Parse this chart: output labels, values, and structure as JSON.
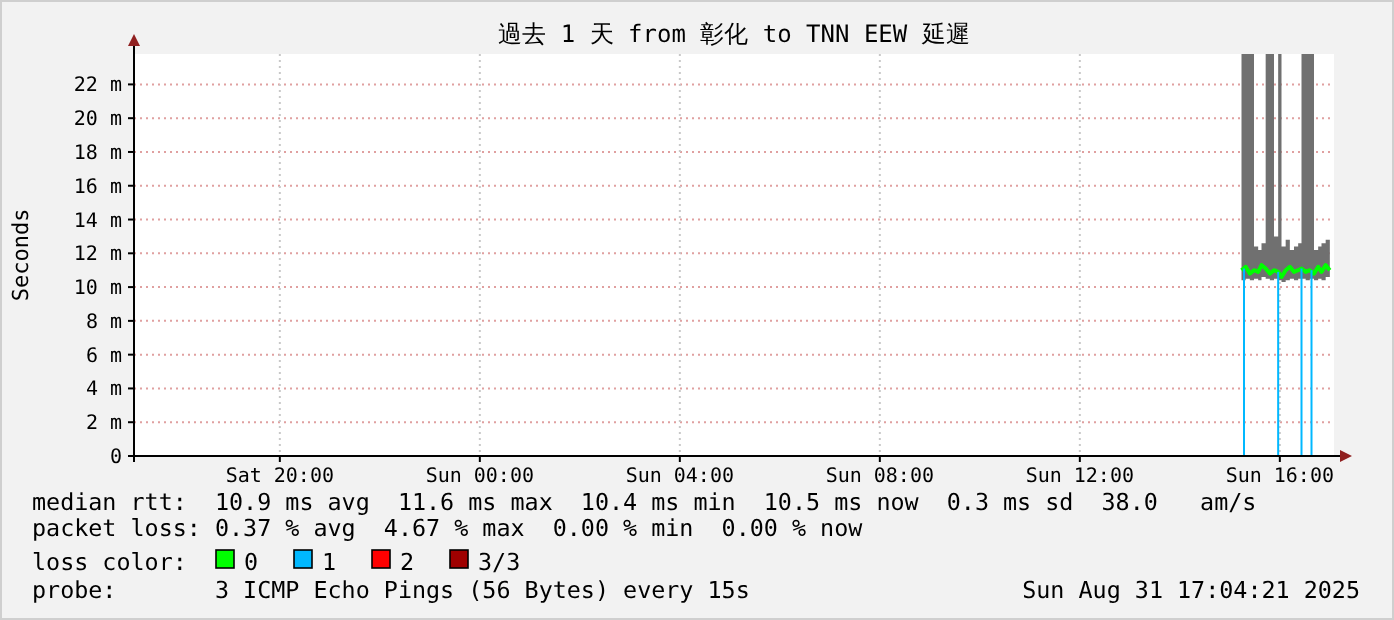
{
  "chart_data": {
    "type": "line",
    "title": "過去 1 天 from 彰化 to TNN EEW 延遲",
    "ylabel": "Seconds",
    "legend_title": "loss color:",
    "legend": "bottom",
    "grid": true,
    "xlim": [
      "2025-08-30T17:05",
      "2025-08-31T17:05"
    ],
    "xticks": [
      {
        "value": "2025-08-30T20:00",
        "label": "Sat 20:00"
      },
      {
        "value": "2025-08-31T00:00",
        "label": "Sun 00:00"
      },
      {
        "value": "2025-08-31T04:00",
        "label": "Sun 04:00"
      },
      {
        "value": "2025-08-31T08:00",
        "label": "Sun 08:00"
      },
      {
        "value": "2025-08-31T12:00",
        "label": "Sun 12:00"
      },
      {
        "value": "2025-08-31T16:00",
        "label": "Sun 16:00"
      }
    ],
    "ylim": [
      0,
      23.8
    ],
    "yticks": [
      0,
      {
        "value": 2,
        "label": "2 m"
      },
      {
        "value": 4,
        "label": "4 m"
      },
      {
        "value": 6,
        "label": "6 m"
      },
      {
        "value": 8,
        "label": "8 m"
      },
      {
        "value": 10,
        "label": "10 m"
      },
      {
        "value": 12,
        "label": "12 m"
      },
      {
        "value": 14,
        "label": "14 m"
      },
      {
        "value": 16,
        "label": "16 m"
      },
      {
        "value": 18,
        "label": "18 m"
      },
      {
        "value": 20,
        "label": "20 m"
      },
      {
        "value": 22,
        "label": "22 m"
      }
    ],
    "series": [
      {
        "name": "0",
        "color": "#00ff00",
        "x": [
          "2025-08-31T15:14",
          "2025-08-31T15:19",
          "2025-08-31T15:24",
          "2025-08-31T15:29",
          "2025-08-31T15:34",
          "2025-08-31T15:38",
          "2025-08-31T15:43",
          "2025-08-31T15:48",
          "2025-08-31T15:53",
          "2025-08-31T15:58",
          "2025-08-31T16:02",
          "2025-08-31T16:07",
          "2025-08-31T16:12",
          "2025-08-31T16:17",
          "2025-08-31T16:22",
          "2025-08-31T16:26",
          "2025-08-31T16:31",
          "2025-08-31T16:36",
          "2025-08-31T16:41",
          "2025-08-31T16:46",
          "2025-08-31T16:50",
          "2025-08-31T16:55",
          "2025-08-31T17:00"
        ],
        "values": [
          11.0,
          11.2,
          10.8,
          11.0,
          10.9,
          11.3,
          11.1,
          10.8,
          11.0,
          10.9,
          10.6,
          11.0,
          11.2,
          10.9,
          11.0,
          11.1,
          10.9,
          11.0,
          10.8,
          11.2,
          10.9,
          11.3,
          11.0
        ],
        "lower": [
          10.4,
          10.5,
          10.4,
          10.5,
          10.4,
          10.6,
          10.5,
          10.4,
          10.5,
          10.4,
          10.3,
          10.4,
          10.5,
          10.4,
          10.5,
          10.5,
          10.4,
          10.5,
          10.4,
          10.5,
          10.4,
          10.6,
          10.5
        ],
        "upper": [
          23.8,
          23.8,
          23.8,
          12.4,
          12.2,
          12.6,
          23.8,
          23.8,
          13.0,
          23.8,
          12.4,
          12.8,
          12.2,
          12.4,
          12.6,
          23.8,
          23.8,
          23.8,
          12.2,
          12.4,
          12.6,
          12.8,
          12.4
        ]
      },
      {
        "name": "1",
        "type": "bar",
        "color": "#00b8ff",
        "x": [
          "2025-08-31T15:17",
          "2025-08-31T15:58",
          "2025-08-31T16:26",
          "2025-08-31T16:38"
        ],
        "values": [
          11.1,
          10.9,
          11.1,
          11.0
        ]
      },
      {
        "name": "2",
        "color": "#ff0000"
      },
      {
        "name": "3/3",
        "color": "#a00000"
      }
    ],
    "annotations": [
      "median rtt:  10.9 ms avg  11.6 ms max  10.4 ms min  10.5 ms now  0.3 ms sd  38.0   am/s",
      "packet loss: 0.37 % avg  4.67 % max  0.00 % min  0.00 % now",
      "probe:       3 ICMP Echo Pings (56 Bytes) every 15s",
      "Sun Aug 31 17:04:21 2025"
    ]
  }
}
